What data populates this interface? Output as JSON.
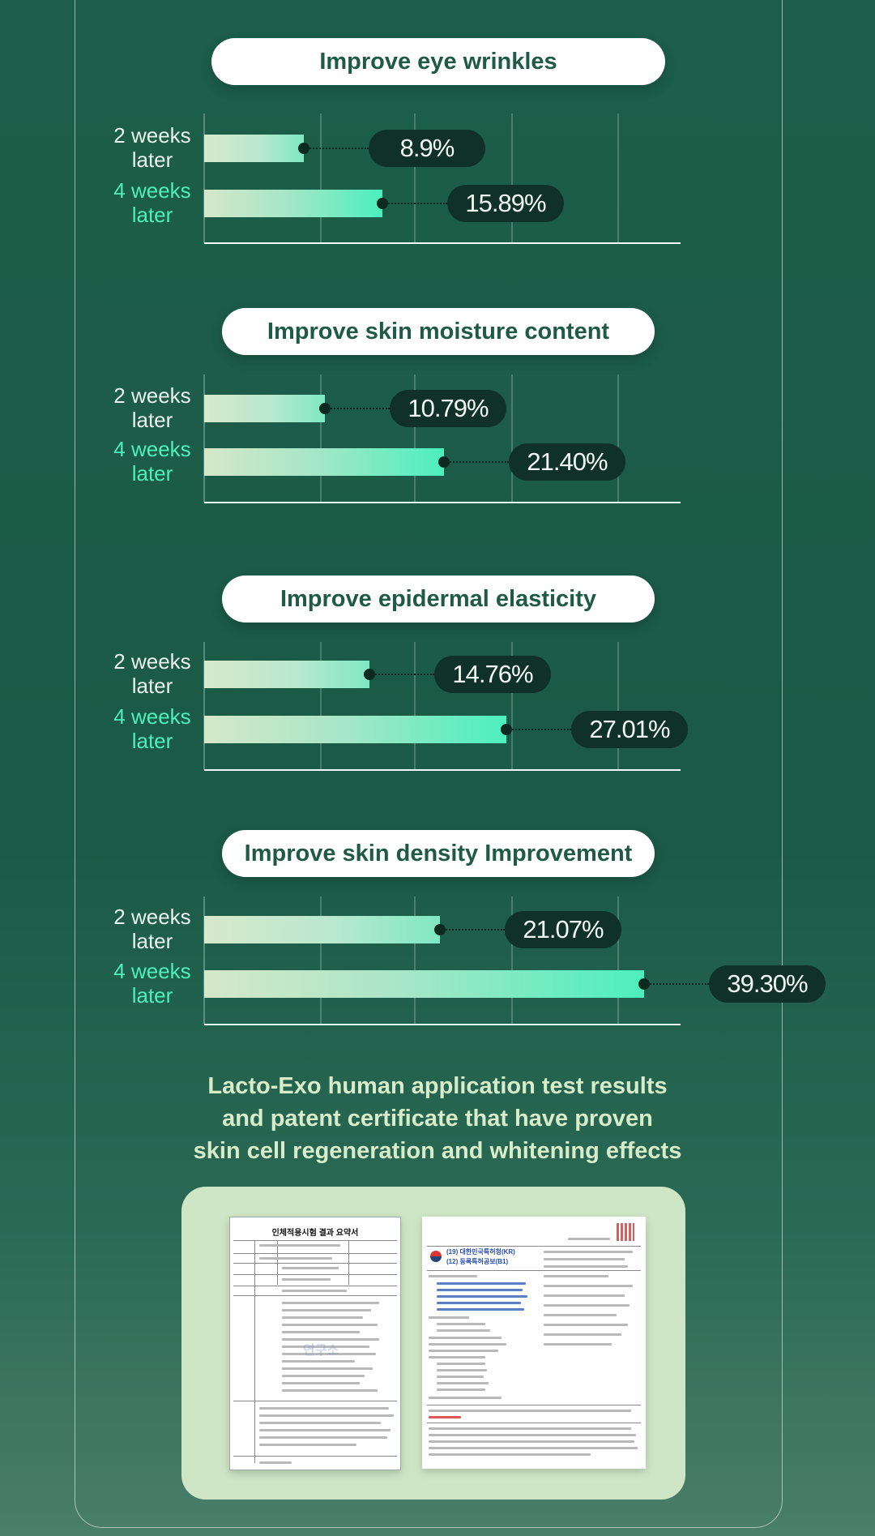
{
  "colors": {
    "background": "#1c5e49",
    "pill_text": "#1f5a47",
    "week2_label": "#eaf3ee",
    "week4_label": "#4df0b8",
    "value_badge": "#0f3127",
    "headline": "#d8ecc9",
    "cert_panel": "#cfe6c6"
  },
  "chart_data": [
    {
      "type": "bar",
      "title": "Improve eye wrinkles",
      "categories": [
        "2 weeks later",
        "4 weeks later"
      ],
      "values": [
        8.9,
        15.89
      ],
      "value_labels": [
        "8.9%",
        "15.89%"
      ],
      "xlim": [
        0,
        40
      ],
      "grid": true
    },
    {
      "type": "bar",
      "title": "Improve skin moisture content",
      "categories": [
        "2 weeks later",
        "4 weeks later"
      ],
      "values": [
        10.79,
        21.4
      ],
      "value_labels": [
        "10.79%",
        "21.40%"
      ],
      "xlim": [
        0,
        40
      ],
      "grid": true
    },
    {
      "type": "bar",
      "title": "Improve epidermal elasticity",
      "categories": [
        "2 weeks later",
        "4 weeks later"
      ],
      "values": [
        14.76,
        27.01
      ],
      "value_labels": [
        "14.76%",
        "27.01%"
      ],
      "xlim": [
        0,
        40
      ],
      "grid": true
    },
    {
      "type": "bar",
      "title": "Improve skin density Improvement",
      "categories": [
        "2 weeks later",
        "4 weeks later"
      ],
      "values": [
        21.07,
        39.3
      ],
      "value_labels": [
        "21.07%",
        "39.30%"
      ],
      "xlim": [
        0,
        40
      ],
      "grid": true
    }
  ],
  "labels": {
    "week2_line1": "2 weeks",
    "week2_line2": "later",
    "week4_line1": "4 weeks",
    "week4_line2": "later"
  },
  "headline": {
    "line1": "Lacto-Exo human application test results",
    "line2": "and patent certificate that have proven",
    "line3": "skin cell regeneration and whitening effects"
  },
  "certificates": {
    "doc1_title": "인체적용시험 결과 요약서",
    "doc1_watermark": "연구소",
    "doc2_line1": "(19) 대한민국특허청(KR)",
    "doc2_line2": "(12) 등록특허공보(B1)"
  }
}
